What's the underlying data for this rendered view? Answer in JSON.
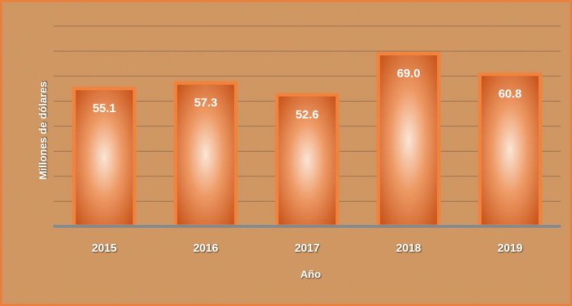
{
  "chart_data": {
    "type": "bar",
    "x_label": "Año",
    "y_label": "Millones de dólares",
    "categories": [
      "2015",
      "2016",
      "2017",
      "2018",
      "2019"
    ],
    "values": [
      55.1,
      57.3,
      52.6,
      69.0,
      60.8
    ],
    "value_labels": [
      "55.1",
      "57.3",
      "52.6",
      "69.0",
      "60.8"
    ],
    "color": "#e0672a",
    "ylim": [
      0,
      80
    ],
    "yticks": [
      0,
      10,
      20,
      30,
      40,
      50,
      60,
      70,
      80
    ],
    "grid": true
  }
}
